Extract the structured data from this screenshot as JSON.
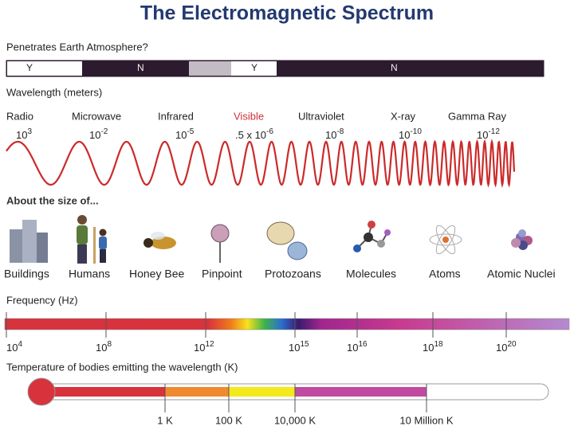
{
  "title": "The Electromagnetic Spectrum",
  "atmosphere": {
    "label": "Penetrates Earth Atmosphere?",
    "segments": [
      "Y",
      "N",
      "Y",
      "N"
    ]
  },
  "wavelength": {
    "label": "Wavelength (meters)",
    "bands": [
      {
        "name": "Radio",
        "value": {
          "base": "10",
          "exp": "3"
        }
      },
      {
        "name": "Microwave",
        "value": {
          "base": "10",
          "exp": "-2"
        }
      },
      {
        "name": "Infrared",
        "value": {
          "base": "10",
          "exp": "-5"
        }
      },
      {
        "name": "Visible",
        "value": {
          "base": ".5 x 10",
          "exp": "-6"
        }
      },
      {
        "name": "Ultraviolet",
        "value": {
          "base": "10",
          "exp": "-8"
        }
      },
      {
        "name": "X-ray",
        "value": {
          "base": "10",
          "exp": "-10"
        }
      },
      {
        "name": "Gamma Ray",
        "value": {
          "base": "10",
          "exp": "-12"
        }
      }
    ]
  },
  "size": {
    "label": "About the size of...",
    "items": [
      "Buildings",
      "Humans",
      "Honey Bee",
      "Pinpoint",
      "Protozoans",
      "Molecules",
      "Atoms",
      "Atomic Nuclei"
    ]
  },
  "frequency": {
    "label": "Frequency (Hz)",
    "ticks": [
      {
        "base": "10",
        "exp": "4"
      },
      {
        "base": "10",
        "exp": "8"
      },
      {
        "base": "10",
        "exp": "12"
      },
      {
        "base": "10",
        "exp": "15"
      },
      {
        "base": "10",
        "exp": "16"
      },
      {
        "base": "10",
        "exp": "18"
      },
      {
        "base": "10",
        "exp": "20"
      }
    ]
  },
  "temperature": {
    "label": "Temperature of bodies emitting the wavelength (K)",
    "ticks": [
      "1 K",
      "100 K",
      "10,000 K",
      "10 Million K"
    ]
  }
}
